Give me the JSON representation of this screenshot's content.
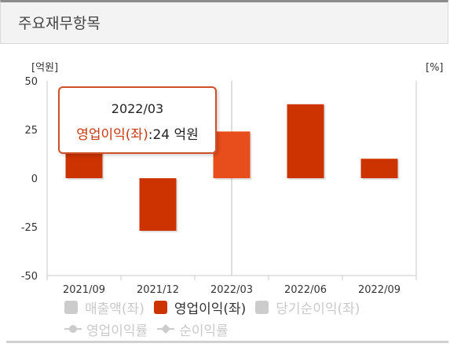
{
  "header": {
    "title": "주요재무항목"
  },
  "colors": {
    "primary": "#cc3300",
    "highlight": "#e84d1c",
    "inactive": "#cccccc",
    "tooltip_border": "#d0502a"
  },
  "chart_data": {
    "type": "bar",
    "left_unit": "[억원]",
    "right_unit": "[%]",
    "categories": [
      "2021/09",
      "2021/12",
      "2022/03",
      "2022/06",
      "2022/09"
    ],
    "series": [
      {
        "name": "영업이익(좌)",
        "values": [
          14,
          -27,
          24,
          38,
          10
        ]
      }
    ],
    "ylim": [
      -50,
      50
    ],
    "yticks": [
      "50",
      "25",
      "0",
      "-25",
      "-50"
    ],
    "highlighted_category": "2022/03",
    "legend": {
      "row1": [
        {
          "label": "매출액(좌)",
          "active": false
        },
        {
          "label": "영업이익(좌)",
          "active": true
        },
        {
          "label": "당기순이익(좌)",
          "active": false
        }
      ],
      "row2": [
        {
          "label": "영업이익률",
          "icon": "circle-line-icon"
        },
        {
          "label": "순이익률",
          "icon": "diamond-line-icon"
        }
      ]
    },
    "tooltip": {
      "date": "2022/03",
      "name": "영업이익(좌)",
      "value": "24 억원"
    }
  }
}
